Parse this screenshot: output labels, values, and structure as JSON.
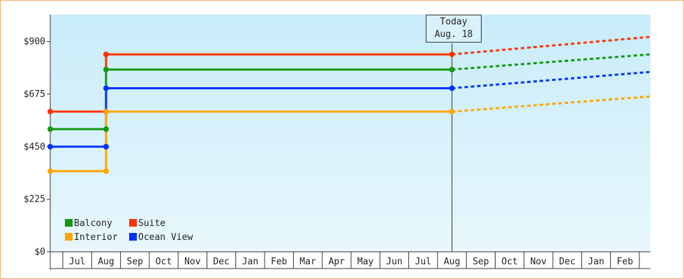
{
  "chart_data": {
    "type": "line",
    "title": "",
    "xlabel": "",
    "ylabel": "",
    "ylim": [
      0,
      1015
    ],
    "yticks": [
      0,
      225,
      450,
      675,
      900
    ],
    "ytick_labels": [
      "$0",
      "$225",
      "$450",
      "$675",
      "$900"
    ],
    "x_categories": [
      "Jul",
      "Aug",
      "Sep",
      "Oct",
      "Nov",
      "Dec",
      "Jan",
      "Feb",
      "Mar",
      "Apr",
      "May",
      "Jun",
      "Jul",
      "Aug",
      "Sep",
      "Oct",
      "Nov",
      "Dec",
      "Jan",
      "Feb"
    ],
    "today_label": {
      "line1": "Today",
      "line2": "Aug. 18"
    },
    "today_index": 13.0,
    "grid": false,
    "legend_position": "bottom-left",
    "series": [
      {
        "name": "Suite",
        "color": "#ff3300",
        "points": [
          [
            -0.5,
            600
          ],
          [
            1.0,
            600
          ],
          [
            1.0,
            845
          ],
          [
            13.0,
            845
          ]
        ],
        "projection": [
          [
            13.0,
            845
          ],
          [
            20.4,
            920
          ]
        ]
      },
      {
        "name": "Balcony",
        "color": "#119911",
        "points": [
          [
            -0.5,
            525
          ],
          [
            1.0,
            525
          ],
          [
            1.0,
            780
          ],
          [
            13.0,
            780
          ]
        ],
        "projection": [
          [
            13.0,
            780
          ],
          [
            20.4,
            845
          ]
        ]
      },
      {
        "name": "Ocean View",
        "color": "#0033ff",
        "points": [
          [
            -0.5,
            450
          ],
          [
            1.0,
            450
          ],
          [
            1.0,
            700
          ],
          [
            13.0,
            700
          ]
        ],
        "projection": [
          [
            13.0,
            700
          ],
          [
            20.4,
            770
          ]
        ]
      },
      {
        "name": "Interior",
        "color": "#ffa500",
        "points": [
          [
            -0.5,
            345
          ],
          [
            1.0,
            345
          ],
          [
            1.0,
            600
          ],
          [
            13.0,
            600
          ]
        ],
        "projection": [
          [
            13.0,
            600
          ],
          [
            20.4,
            665
          ]
        ]
      }
    ]
  }
}
